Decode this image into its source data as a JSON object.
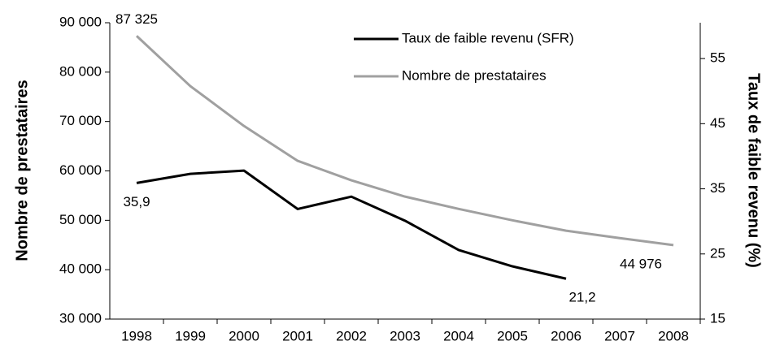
{
  "chart_data": {
    "type": "line",
    "categories": [
      "1998",
      "1999",
      "2000",
      "2001",
      "2002",
      "2003",
      "2004",
      "2005",
      "2006",
      "2007",
      "2008"
    ],
    "y_label": "Nombre de prestataires",
    "y2_label": "Taux de faible revenu (%)",
    "ylim": [
      30000,
      90000
    ],
    "yticks": [
      {
        "value": 30000,
        "label": "30 000"
      },
      {
        "value": 40000,
        "label": "40 000"
      },
      {
        "value": 50000,
        "label": "50 000"
      },
      {
        "value": 60000,
        "label": "60 000"
      },
      {
        "value": 70000,
        "label": "70 000"
      },
      {
        "value": 80000,
        "label": "80 000"
      },
      {
        "value": 90000,
        "label": "90 000"
      }
    ],
    "y2lim": [
      15,
      60.5
    ],
    "y2ticks": [
      15,
      25,
      35,
      45,
      55
    ],
    "legend": "top",
    "series": [
      {
        "name": "Taux de faible revenu (SFR)",
        "color": "#000000",
        "axis": "y2",
        "values": [
          35.9,
          37.3,
          37.8,
          31.9,
          33.8,
          30.1,
          25.6,
          23.1,
          21.2,
          null,
          null
        ],
        "value_labels": [
          "35,9",
          null,
          null,
          null,
          null,
          null,
          null,
          null,
          "21,2",
          null,
          null
        ]
      },
      {
        "name": "Nombre de prestataires",
        "color": "#a0a0a0",
        "values": [
          87325,
          77170,
          69100,
          62040,
          58100,
          54800,
          52300,
          50000,
          47900,
          46400,
          44976
        ],
        "value_labels": [
          "87 325",
          null,
          null,
          null,
          null,
          null,
          null,
          null,
          null,
          null,
          "44 976"
        ]
      }
    ]
  }
}
